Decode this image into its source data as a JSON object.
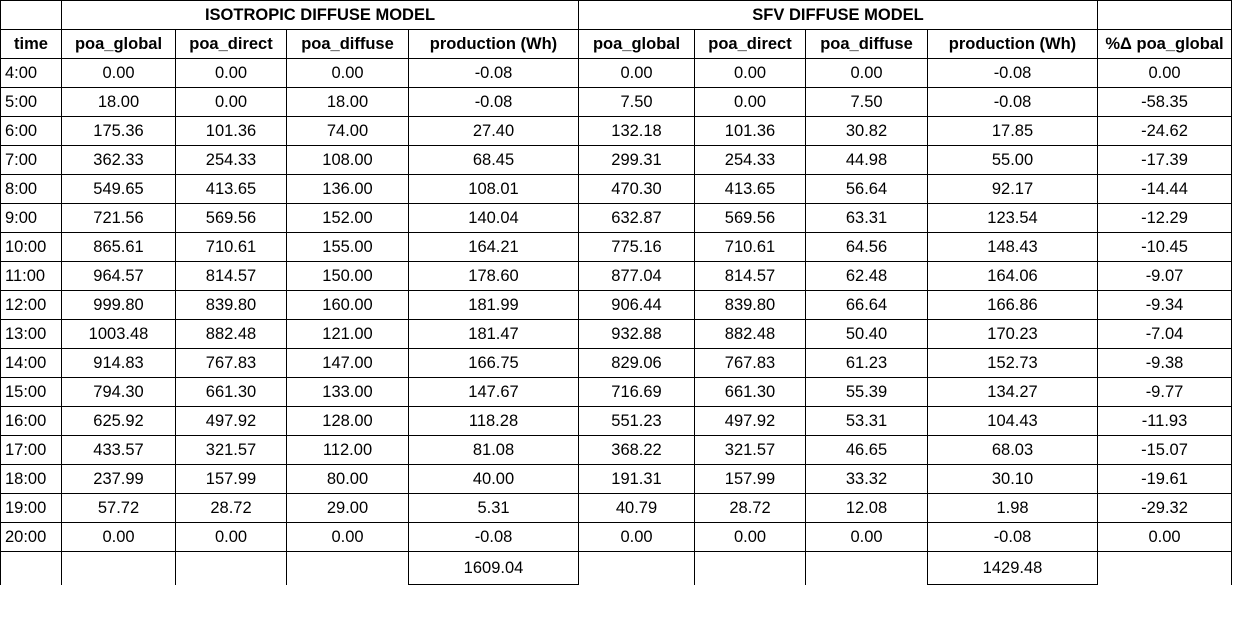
{
  "groups": {
    "isotropic": "ISOTROPIC DIFFUSE MODEL",
    "sfv": "SFV DIFFUSE MODEL"
  },
  "columns": [
    "time",
    "poa_global",
    "poa_direct",
    "poa_diffuse",
    "production (Wh)",
    "poa_global",
    "poa_direct",
    "poa_diffuse",
    "production (Wh)",
    "%Δ  poa_global"
  ],
  "rows": [
    [
      "4:00",
      "0.00",
      "0.00",
      "0.00",
      "-0.08",
      "0.00",
      "0.00",
      "0.00",
      "-0.08",
      "0.00"
    ],
    [
      "5:00",
      "18.00",
      "0.00",
      "18.00",
      "-0.08",
      "7.50",
      "0.00",
      "7.50",
      "-0.08",
      "-58.35"
    ],
    [
      "6:00",
      "175.36",
      "101.36",
      "74.00",
      "27.40",
      "132.18",
      "101.36",
      "30.82",
      "17.85",
      "-24.62"
    ],
    [
      "7:00",
      "362.33",
      "254.33",
      "108.00",
      "68.45",
      "299.31",
      "254.33",
      "44.98",
      "55.00",
      "-17.39"
    ],
    [
      "8:00",
      "549.65",
      "413.65",
      "136.00",
      "108.01",
      "470.30",
      "413.65",
      "56.64",
      "92.17",
      "-14.44"
    ],
    [
      "9:00",
      "721.56",
      "569.56",
      "152.00",
      "140.04",
      "632.87",
      "569.56",
      "63.31",
      "123.54",
      "-12.29"
    ],
    [
      "10:00",
      "865.61",
      "710.61",
      "155.00",
      "164.21",
      "775.16",
      "710.61",
      "64.56",
      "148.43",
      "-10.45"
    ],
    [
      "11:00",
      "964.57",
      "814.57",
      "150.00",
      "178.60",
      "877.04",
      "814.57",
      "62.48",
      "164.06",
      "-9.07"
    ],
    [
      "12:00",
      "999.80",
      "839.80",
      "160.00",
      "181.99",
      "906.44",
      "839.80",
      "66.64",
      "166.86",
      "-9.34"
    ],
    [
      "13:00",
      "1003.48",
      "882.48",
      "121.00",
      "181.47",
      "932.88",
      "882.48",
      "50.40",
      "170.23",
      "-7.04"
    ],
    [
      "14:00",
      "914.83",
      "767.83",
      "147.00",
      "166.75",
      "829.06",
      "767.83",
      "61.23",
      "152.73",
      "-9.38"
    ],
    [
      "15:00",
      "794.30",
      "661.30",
      "133.00",
      "147.67",
      "716.69",
      "661.30",
      "55.39",
      "134.27",
      "-9.77"
    ],
    [
      "16:00",
      "625.92",
      "497.92",
      "128.00",
      "118.28",
      "551.23",
      "497.92",
      "53.31",
      "104.43",
      "-11.93"
    ],
    [
      "17:00",
      "433.57",
      "321.57",
      "112.00",
      "81.08",
      "368.22",
      "321.57",
      "46.65",
      "68.03",
      "-15.07"
    ],
    [
      "18:00",
      "237.99",
      "157.99",
      "80.00",
      "40.00",
      "191.31",
      "157.99",
      "33.32",
      "30.10",
      "-19.61"
    ],
    [
      "19:00",
      "57.72",
      "28.72",
      "29.00",
      "5.31",
      "40.79",
      "28.72",
      "12.08",
      "1.98",
      "-29.32"
    ],
    [
      "20:00",
      "0.00",
      "0.00",
      "0.00",
      "-0.08",
      "0.00",
      "0.00",
      "0.00",
      "-0.08",
      "0.00"
    ]
  ],
  "totals": {
    "isotropic_production": "1609.04",
    "sfv_production": "1429.48"
  }
}
